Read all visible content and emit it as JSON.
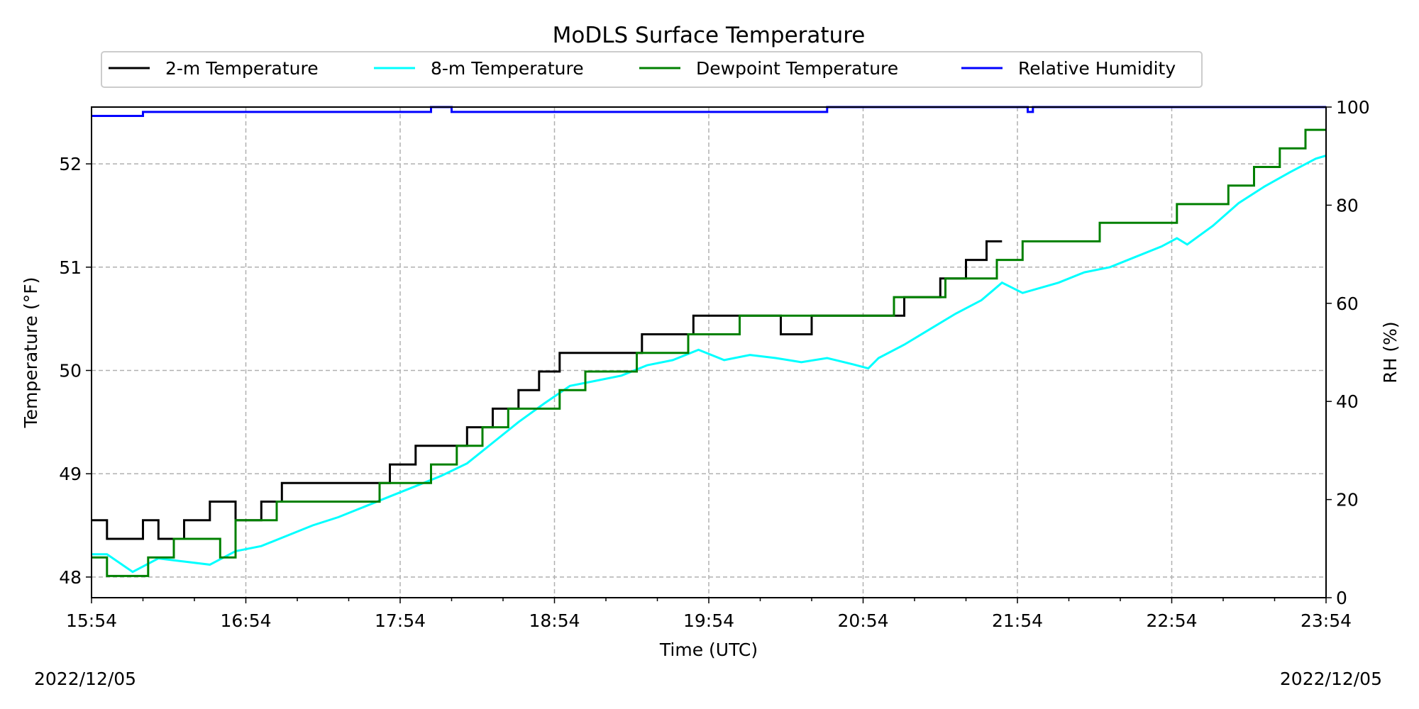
{
  "chart_data": {
    "type": "line",
    "title": "MoDLS Surface Temperature",
    "xlabel": "Time (UTC)",
    "ylabel": "Temperature ($^\\circ$F)",
    "ylabel_display": "Temperature (°F)",
    "y2label": "RH (%)",
    "xlim": [
      "15:54",
      "23:54"
    ],
    "ylim": [
      47.8,
      52.55
    ],
    "y2lim": [
      0,
      100
    ],
    "xticks": [
      "15:54",
      "16:54",
      "17:54",
      "18:54",
      "19:54",
      "20:54",
      "21:54",
      "22:54",
      "23:54"
    ],
    "yticks": [
      48,
      49,
      50,
      51,
      52
    ],
    "y2ticks": [
      0,
      20,
      40,
      60,
      80,
      100
    ],
    "grid": true,
    "legend_position": "top-center",
    "series": [
      {
        "name": "2-m Temperature",
        "color": "#000000",
        "axis": "left",
        "points": [
          [
            "15:54",
            48.55
          ],
          [
            "16:00",
            48.37
          ],
          [
            "16:14",
            48.55
          ],
          [
            "16:20",
            48.37
          ],
          [
            "16:30",
            48.55
          ],
          [
            "16:40",
            48.73
          ],
          [
            "16:50",
            48.55
          ],
          [
            "17:00",
            48.73
          ],
          [
            "17:08",
            48.91
          ],
          [
            "17:20",
            48.91
          ],
          [
            "17:30",
            48.91
          ],
          [
            "17:40",
            48.91
          ],
          [
            "17:50",
            49.09
          ],
          [
            "18:00",
            49.27
          ],
          [
            "18:10",
            49.27
          ],
          [
            "18:20",
            49.45
          ],
          [
            "18:30",
            49.63
          ],
          [
            "18:40",
            49.81
          ],
          [
            "18:48",
            49.99
          ],
          [
            "18:56",
            50.17
          ],
          [
            "19:06",
            50.17
          ],
          [
            "19:16",
            50.17
          ],
          [
            "19:28",
            50.35
          ],
          [
            "19:38",
            50.35
          ],
          [
            "19:48",
            50.53
          ],
          [
            "19:58",
            50.53
          ],
          [
            "20:10",
            50.53
          ],
          [
            "20:22",
            50.35
          ],
          [
            "20:34",
            50.53
          ],
          [
            "20:46",
            50.53
          ],
          [
            "20:56",
            50.53
          ],
          [
            "21:10",
            50.71
          ],
          [
            "21:24",
            50.89
          ],
          [
            "21:34",
            51.07
          ],
          [
            "21:42",
            51.25
          ],
          [
            "21:48",
            51.25
          ]
        ]
      },
      {
        "name": "8-m Temperature",
        "color": "#00ffff",
        "axis": "left",
        "points": [
          [
            "15:54",
            48.22
          ],
          [
            "16:00",
            48.22
          ],
          [
            "16:10",
            48.05
          ],
          [
            "16:20",
            48.18
          ],
          [
            "16:30",
            48.15
          ],
          [
            "16:40",
            48.12
          ],
          [
            "16:50",
            48.25
          ],
          [
            "17:00",
            48.3
          ],
          [
            "17:10",
            48.4
          ],
          [
            "17:20",
            48.5
          ],
          [
            "17:30",
            48.58
          ],
          [
            "17:40",
            48.68
          ],
          [
            "17:50",
            48.78
          ],
          [
            "18:00",
            48.88
          ],
          [
            "18:10",
            48.98
          ],
          [
            "18:20",
            49.1
          ],
          [
            "18:30",
            49.3
          ],
          [
            "18:40",
            49.5
          ],
          [
            "18:50",
            49.68
          ],
          [
            "19:00",
            49.85
          ],
          [
            "19:10",
            49.9
          ],
          [
            "19:20",
            49.95
          ],
          [
            "19:30",
            50.05
          ],
          [
            "19:40",
            50.1
          ],
          [
            "19:50",
            50.2
          ],
          [
            "20:00",
            50.1
          ],
          [
            "20:10",
            50.15
          ],
          [
            "20:20",
            50.12
          ],
          [
            "20:30",
            50.08
          ],
          [
            "20:40",
            50.12
          ],
          [
            "20:50",
            50.06
          ],
          [
            "20:56",
            50.02
          ],
          [
            "21:00",
            50.12
          ],
          [
            "21:10",
            50.25
          ],
          [
            "21:20",
            50.4
          ],
          [
            "21:30",
            50.55
          ],
          [
            "21:40",
            50.68
          ],
          [
            "21:48",
            50.85
          ],
          [
            "21:56",
            50.75
          ],
          [
            "22:10",
            50.85
          ],
          [
            "22:20",
            50.95
          ],
          [
            "22:30",
            51.0
          ],
          [
            "22:40",
            51.1
          ],
          [
            "22:50",
            51.2
          ],
          [
            "22:56",
            51.28
          ],
          [
            "23:00",
            51.22
          ],
          [
            "23:10",
            51.4
          ],
          [
            "23:20",
            51.62
          ],
          [
            "23:30",
            51.78
          ],
          [
            "23:40",
            51.92
          ],
          [
            "23:50",
            52.05
          ],
          [
            "23:54",
            52.08
          ]
        ]
      },
      {
        "name": "Dewpoint Temperature",
        "color": "#008000",
        "axis": "left",
        "points": [
          [
            "15:54",
            48.19
          ],
          [
            "16:00",
            48.01
          ],
          [
            "16:10",
            48.01
          ],
          [
            "16:16",
            48.19
          ],
          [
            "16:26",
            48.37
          ],
          [
            "16:36",
            48.37
          ],
          [
            "16:44",
            48.19
          ],
          [
            "16:50",
            48.55
          ],
          [
            "17:00",
            48.55
          ],
          [
            "17:06",
            48.73
          ],
          [
            "17:16",
            48.73
          ],
          [
            "17:26",
            48.73
          ],
          [
            "17:36",
            48.73
          ],
          [
            "17:46",
            48.91
          ],
          [
            "17:56",
            48.91
          ],
          [
            "18:06",
            49.09
          ],
          [
            "18:16",
            49.27
          ],
          [
            "18:26",
            49.45
          ],
          [
            "18:36",
            49.63
          ],
          [
            "18:46",
            49.63
          ],
          [
            "18:56",
            49.81
          ],
          [
            "19:06",
            49.99
          ],
          [
            "19:16",
            49.99
          ],
          [
            "19:26",
            50.17
          ],
          [
            "19:36",
            50.17
          ],
          [
            "19:46",
            50.35
          ],
          [
            "19:56",
            50.35
          ],
          [
            "20:06",
            50.53
          ],
          [
            "20:16",
            50.53
          ],
          [
            "20:26",
            50.53
          ],
          [
            "20:36",
            50.53
          ],
          [
            "20:46",
            50.53
          ],
          [
            "20:56",
            50.53
          ],
          [
            "21:06",
            50.71
          ],
          [
            "21:16",
            50.71
          ],
          [
            "21:26",
            50.89
          ],
          [
            "21:36",
            50.89
          ],
          [
            "21:46",
            51.07
          ],
          [
            "21:56",
            51.25
          ],
          [
            "22:06",
            51.25
          ],
          [
            "22:16",
            51.25
          ],
          [
            "22:26",
            51.43
          ],
          [
            "22:36",
            51.43
          ],
          [
            "22:46",
            51.43
          ],
          [
            "22:56",
            51.61
          ],
          [
            "23:06",
            51.61
          ],
          [
            "23:16",
            51.79
          ],
          [
            "23:26",
            51.97
          ],
          [
            "23:36",
            52.15
          ],
          [
            "23:46",
            52.33
          ],
          [
            "23:54",
            52.33
          ]
        ]
      },
      {
        "name": "Relative Humidity",
        "color": "#0000ff",
        "axis": "right",
        "points": [
          [
            "15:54",
            98.2
          ],
          [
            "16:14",
            98.2
          ],
          [
            "16:14",
            99.0
          ],
          [
            "18:06",
            99.0
          ],
          [
            "18:06",
            100
          ],
          [
            "18:14",
            100
          ],
          [
            "18:14",
            99.0
          ],
          [
            "20:40",
            99.0
          ],
          [
            "20:40",
            100
          ],
          [
            "21:58",
            100
          ],
          [
            "21:58",
            99.0
          ],
          [
            "22:00",
            99.0
          ],
          [
            "22:00",
            100
          ],
          [
            "23:54",
            100
          ]
        ]
      }
    ]
  },
  "dates": {
    "left": "2022/12/05",
    "right": "2022/12/05"
  }
}
